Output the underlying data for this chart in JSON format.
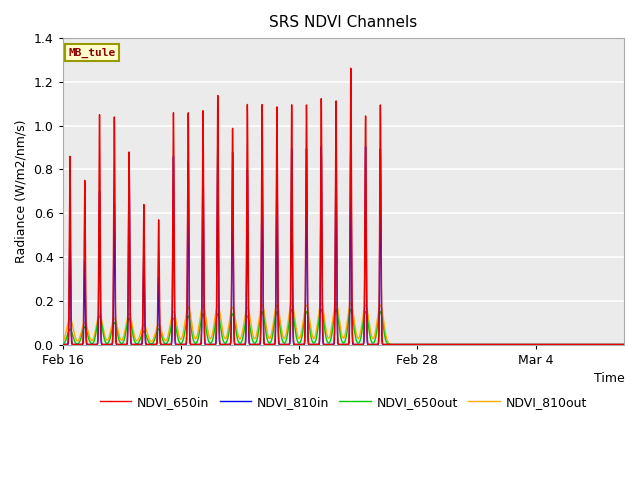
{
  "title": "SRS NDVI Channels",
  "xlabel": "Time",
  "ylabel": "Radiance (W/m2/nm/s)",
  "annotation": "MB_tule",
  "ylim": [
    0.0,
    1.4
  ],
  "bg_inner": "#ebebeb",
  "bg_outer": "#ffffff",
  "grid_color": "#ffffff",
  "series": {
    "NDVI_650in": {
      "color": "#ee0000",
      "lw": 1.0
    },
    "NDVI_810in": {
      "color": "#0000ee",
      "lw": 1.0
    },
    "NDVI_650out": {
      "color": "#00cc00",
      "lw": 1.0
    },
    "NDVI_810out": {
      "color": "#ffaa00",
      "lw": 1.0
    }
  },
  "xtick_labels": [
    "Feb 16",
    "Feb 20",
    "Feb 24",
    "Feb 28",
    "Mar 4"
  ],
  "days_count": 19,
  "peak_heights_650in": [
    0.86,
    0.75,
    1.05,
    1.04,
    0.88,
    0.64,
    0.57,
    1.06,
    1.06,
    1.07,
    1.14,
    0.99,
    1.1,
    1.1,
    1.09,
    1.1,
    1.1,
    1.13,
    1.12,
    1.27,
    1.05,
    1.1
  ],
  "peak_heights_810in": [
    0.55,
    0.38,
    0.7,
    0.65,
    0.82,
    0.44,
    0.31,
    0.86,
    0.84,
    0.86,
    0.9,
    0.88,
    0.8,
    0.88,
    0.89,
    0.9,
    0.9,
    0.91,
    0.91,
    0.91,
    0.91,
    0.9
  ],
  "peak_heights_650out": [
    0.07,
    0.08,
    0.13,
    0.1,
    0.12,
    0.06,
    0.07,
    0.12,
    0.13,
    0.14,
    0.14,
    0.14,
    0.13,
    0.15,
    0.15,
    0.16,
    0.15,
    0.16,
    0.16,
    0.16,
    0.15,
    0.15
  ],
  "peak_heights_810out": [
    0.12,
    0.1,
    0.14,
    0.12,
    0.14,
    0.09,
    0.09,
    0.15,
    0.17,
    0.18,
    0.18,
    0.17,
    0.17,
    0.18,
    0.18,
    0.19,
    0.18,
    0.19,
    0.19,
    0.19,
    0.18,
    0.18
  ]
}
